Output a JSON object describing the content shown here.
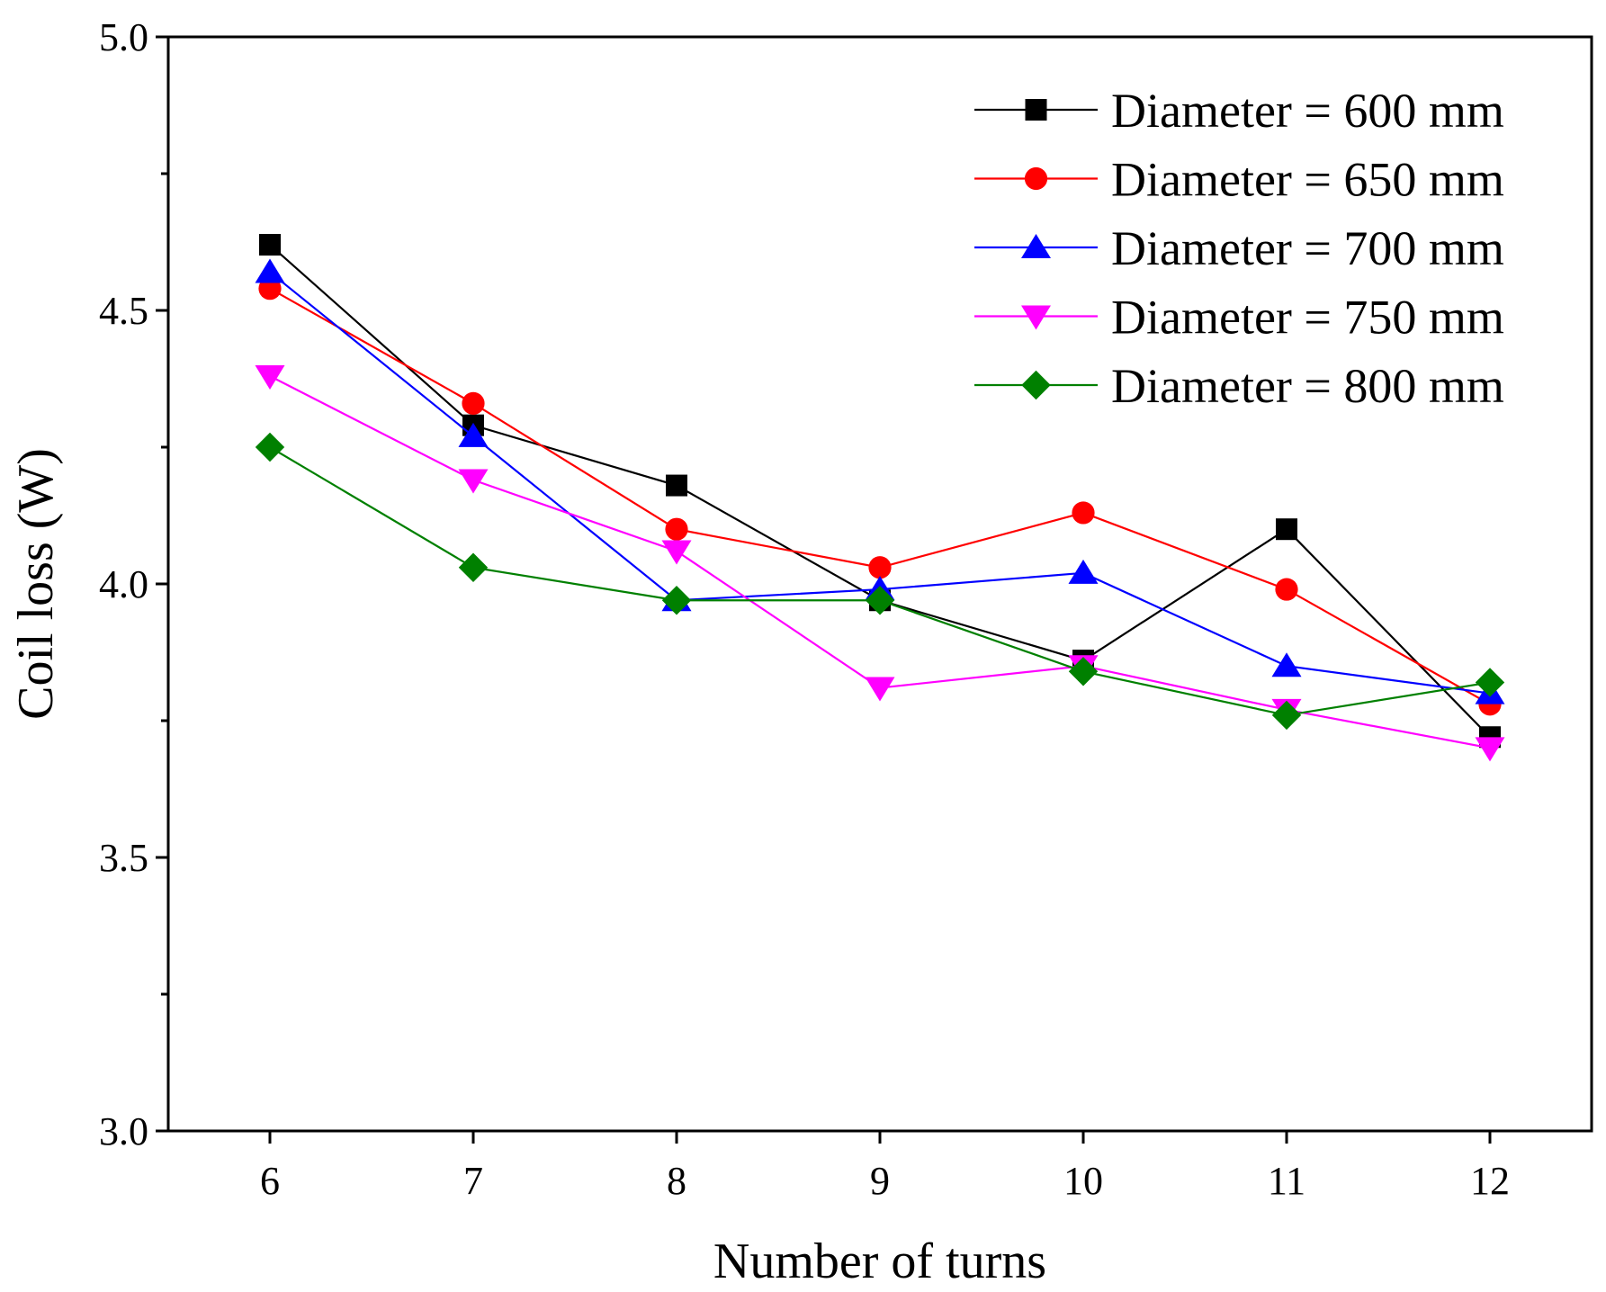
{
  "chart_data": {
    "type": "line",
    "title": "",
    "xlabel": "Number of turns",
    "ylabel": "Coil loss (W)",
    "x": [
      6,
      7,
      8,
      9,
      10,
      11,
      12
    ],
    "xlim": [
      5.5,
      12.5
    ],
    "ylim": [
      3.0,
      5.0
    ],
    "x_ticks": [
      "6",
      "7",
      "8",
      "9",
      "10",
      "11",
      "12"
    ],
    "y_ticks": [
      "3.0",
      "3.5",
      "4.0",
      "4.5",
      "5.0"
    ],
    "grid": false,
    "legend_position": "top-right",
    "series": [
      {
        "name": "Diameter = 600 mm",
        "color": "#000000",
        "marker": "square",
        "values": [
          4.62,
          4.29,
          4.18,
          3.97,
          3.86,
          4.1,
          3.72
        ]
      },
      {
        "name": "Diameter = 650 mm",
        "color": "#ff0000",
        "marker": "circle",
        "values": [
          4.54,
          4.33,
          4.1,
          4.03,
          4.13,
          3.99,
          3.78
        ]
      },
      {
        "name": "Diameter = 700 mm",
        "color": "#0000ff",
        "marker": "triangle-up",
        "values": [
          4.57,
          4.27,
          3.97,
          3.99,
          4.02,
          3.85,
          3.8
        ]
      },
      {
        "name": "Diameter = 750 mm",
        "color": "#ff00ff",
        "marker": "triangle-down",
        "values": [
          4.38,
          4.19,
          4.06,
          3.81,
          3.85,
          3.77,
          3.7
        ]
      },
      {
        "name": "Diameter = 800 mm",
        "color": "#008000",
        "marker": "diamond",
        "values": [
          4.25,
          4.03,
          3.97,
          3.97,
          3.84,
          3.76,
          3.82
        ]
      }
    ]
  }
}
